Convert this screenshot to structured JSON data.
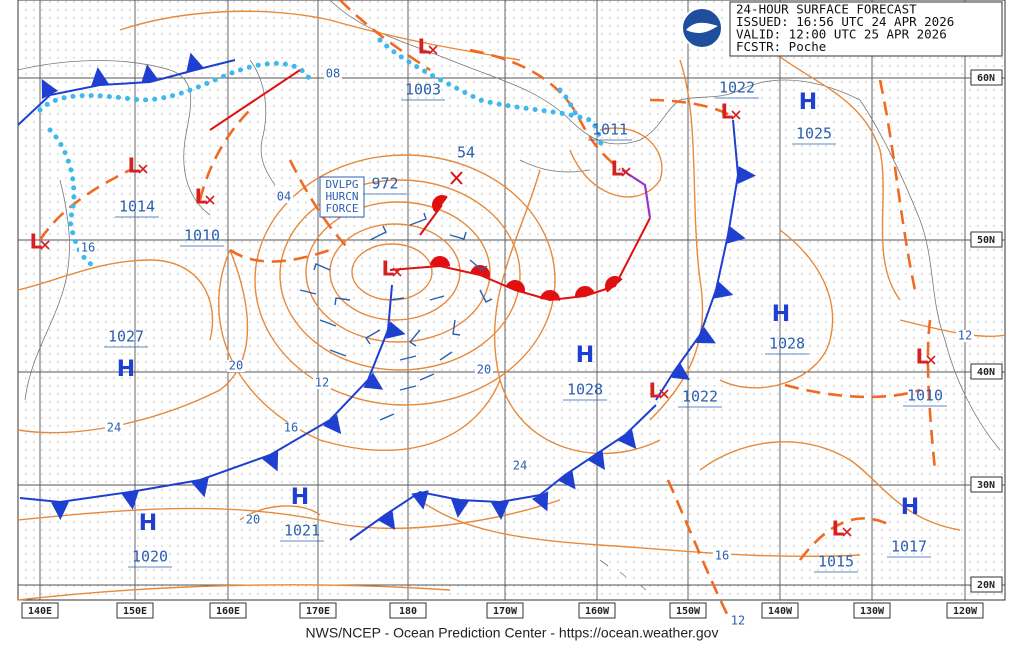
{
  "header": {
    "lines": [
      "24-HOUR SURFACE FORECAST",
      "ISSUED: 16:56 UTC 24 APR 2026",
      "VALID: 12:00 UTC 25 APR 2026",
      "FCSTR: Poche"
    ]
  },
  "footer": "NWS/NCEP - Ocean Prediction Center - https://ocean.weather.gov",
  "longitude_labels": [
    "140E",
    "150E",
    "160E",
    "170E",
    "180",
    "170W",
    "160W",
    "150W",
    "140W",
    "130W",
    "120W"
  ],
  "latitude_labels": [
    "60N",
    "50N",
    "40N",
    "30N",
    "20N"
  ],
  "warning": [
    "DVLPG",
    "HURCN",
    "FORCE"
  ],
  "marker_label": "54",
  "systems": [
    {
      "symbol": "L",
      "pressure": 1003
    },
    {
      "symbol": "L",
      "pressure": 1011
    },
    {
      "symbol": "L",
      "pressure": 1022
    },
    {
      "symbol": "H",
      "pressure": 1025
    },
    {
      "symbol": "L",
      "pressure": 1014
    },
    {
      "symbol": "L",
      "pressure": 1010
    },
    {
      "symbol": "L"
    },
    {
      "symbol": "L",
      "pressure": 972
    },
    {
      "symbol": "H",
      "pressure": 1027
    },
    {
      "symbol": "H",
      "pressure": 1028
    },
    {
      "symbol": "H",
      "pressure": 1028
    },
    {
      "symbol": "L",
      "pressure": 1022
    },
    {
      "symbol": "L",
      "pressure": 1010
    },
    {
      "symbol": "H",
      "pressure": 1020
    },
    {
      "symbol": "H",
      "pressure": 1021
    },
    {
      "symbol": "L",
      "pressure": 1015
    },
    {
      "symbol": "H",
      "pressure": 1017
    }
  ],
  "isobar_labels": [
    "08",
    "04",
    "16",
    "20",
    "12",
    "24",
    "16",
    "20",
    "20",
    "24",
    "16",
    "12",
    "12"
  ]
}
